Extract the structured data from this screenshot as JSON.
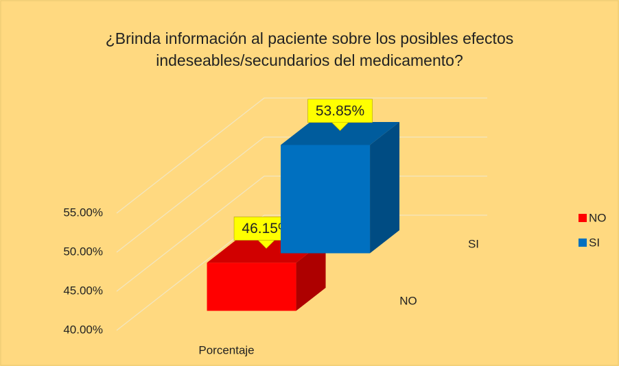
{
  "chart_data": {
    "type": "bar3d",
    "title": "¿Brinda información al paciente sobre los posibles efectos indeseables/secundarios del medicamento?",
    "categories": [
      "Porcentaje"
    ],
    "series": [
      {
        "name": "NO",
        "color": "#ff0000",
        "values": [
          46.15
        ],
        "value_labels": [
          "46.15%"
        ]
      },
      {
        "name": "SI",
        "color": "#0070c0",
        "values": [
          53.85
        ],
        "value_labels": [
          "53.85%"
        ]
      }
    ],
    "ylim": [
      40,
      55
    ],
    "yticks": [
      {
        "value": 40,
        "label": "40.00%"
      },
      {
        "value": 45,
        "label": "45.00%"
      },
      {
        "value": 50,
        "label": "50.00%"
      },
      {
        "value": 55,
        "label": "55.00%"
      }
    ],
    "grid": true,
    "legend": "right"
  }
}
